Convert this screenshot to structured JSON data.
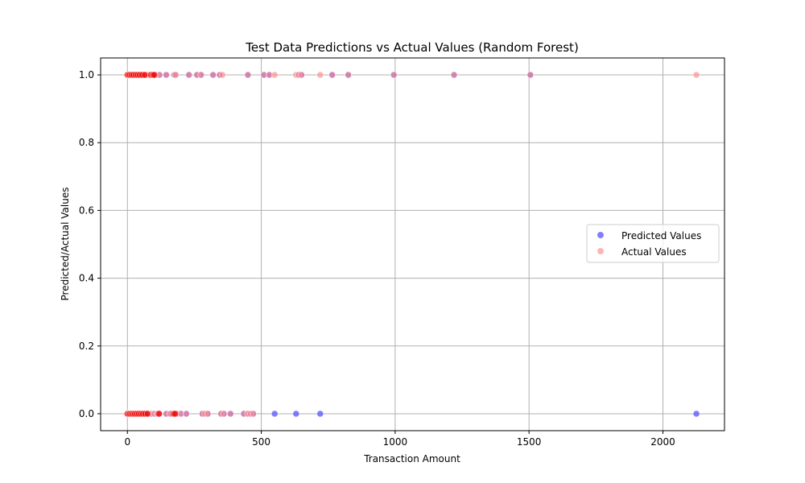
{
  "chart_data": {
    "type": "scatter",
    "title": "Test Data Predictions vs Actual Values (Random Forest)",
    "xlabel": "Transaction Amount",
    "ylabel": "Predicted/Actual Values",
    "xlim": [
      -100,
      2230
    ],
    "ylim": [
      -0.05,
      1.05
    ],
    "xticks": [
      0,
      500,
      1000,
      1500,
      2000
    ],
    "yticks": [
      0.0,
      0.2,
      0.4,
      0.6,
      0.8,
      1.0
    ],
    "xtick_labels": [
      "0",
      "500",
      "1000",
      "1500",
      "2000"
    ],
    "ytick_labels": [
      "0.0",
      "0.2",
      "0.4",
      "0.6",
      "0.8",
      "1.0"
    ],
    "grid": true,
    "legend_position": "right",
    "series": [
      {
        "name": "Predicted Values",
        "color": "#5555ff",
        "opacity": 0.75,
        "points": [
          [
            0,
            1
          ],
          [
            3,
            1
          ],
          [
            6,
            1
          ],
          [
            10,
            1
          ],
          [
            14,
            1
          ],
          [
            20,
            1
          ],
          [
            26,
            1
          ],
          [
            32,
            1
          ],
          [
            38,
            1
          ],
          [
            44,
            1
          ],
          [
            50,
            1
          ],
          [
            58,
            1
          ],
          [
            66,
            1
          ],
          [
            74,
            1
          ],
          [
            82,
            1
          ],
          [
            90,
            1
          ],
          [
            98,
            1
          ],
          [
            105,
            1
          ],
          [
            120,
            1
          ],
          [
            145,
            1
          ],
          [
            175,
            1
          ],
          [
            180,
            1
          ],
          [
            230,
            1
          ],
          [
            260,
            1
          ],
          [
            275,
            1
          ],
          [
            320,
            1
          ],
          [
            345,
            1
          ],
          [
            450,
            1
          ],
          [
            510,
            1
          ],
          [
            530,
            1
          ],
          [
            640,
            1
          ],
          [
            650,
            1
          ],
          [
            765,
            1
          ],
          [
            825,
            1
          ],
          [
            995,
            1
          ],
          [
            1220,
            1
          ],
          [
            1505,
            1
          ],
          [
            0,
            0
          ],
          [
            4,
            0
          ],
          [
            8,
            0
          ],
          [
            12,
            0
          ],
          [
            18,
            0
          ],
          [
            24,
            0
          ],
          [
            30,
            0
          ],
          [
            36,
            0
          ],
          [
            42,
            0
          ],
          [
            48,
            0
          ],
          [
            55,
            0
          ],
          [
            62,
            0
          ],
          [
            70,
            0
          ],
          [
            78,
            0
          ],
          [
            88,
            0
          ],
          [
            100,
            0
          ],
          [
            112,
            0
          ],
          [
            120,
            0
          ],
          [
            145,
            0
          ],
          [
            160,
            0
          ],
          [
            175,
            0
          ],
          [
            185,
            0
          ],
          [
            200,
            0
          ],
          [
            220,
            0
          ],
          [
            280,
            0
          ],
          [
            290,
            0
          ],
          [
            300,
            0
          ],
          [
            350,
            0
          ],
          [
            360,
            0
          ],
          [
            385,
            0
          ],
          [
            435,
            0
          ],
          [
            450,
            0
          ],
          [
            460,
            0
          ],
          [
            470,
            0
          ],
          [
            550,
            0
          ],
          [
            630,
            0
          ],
          [
            720,
            0
          ],
          [
            2125,
            0
          ]
        ]
      },
      {
        "name": "Actual Values",
        "color": "#ff8c8c",
        "opacity": 0.65,
        "points": [
          [
            0,
            1
          ],
          [
            3,
            1
          ],
          [
            6,
            1
          ],
          [
            10,
            1
          ],
          [
            14,
            1
          ],
          [
            20,
            1
          ],
          [
            26,
            1
          ],
          [
            32,
            1
          ],
          [
            38,
            1
          ],
          [
            44,
            1
          ],
          [
            50,
            1
          ],
          [
            58,
            1
          ],
          [
            66,
            1
          ],
          [
            74,
            1
          ],
          [
            82,
            1
          ],
          [
            90,
            1
          ],
          [
            98,
            1
          ],
          [
            105,
            1
          ],
          [
            120,
            1
          ],
          [
            145,
            1
          ],
          [
            175,
            1
          ],
          [
            180,
            1
          ],
          [
            230,
            1
          ],
          [
            260,
            1
          ],
          [
            275,
            1
          ],
          [
            320,
            1
          ],
          [
            345,
            1
          ],
          [
            355,
            1
          ],
          [
            450,
            1
          ],
          [
            510,
            1
          ],
          [
            530,
            1
          ],
          [
            550,
            1
          ],
          [
            630,
            1
          ],
          [
            640,
            1
          ],
          [
            650,
            1
          ],
          [
            720,
            1
          ],
          [
            765,
            1
          ],
          [
            825,
            1
          ],
          [
            995,
            1
          ],
          [
            1220,
            1
          ],
          [
            1505,
            1
          ],
          [
            2125,
            1
          ],
          [
            0,
            0
          ],
          [
            4,
            0
          ],
          [
            8,
            0
          ],
          [
            12,
            0
          ],
          [
            18,
            0
          ],
          [
            24,
            0
          ],
          [
            30,
            0
          ],
          [
            36,
            0
          ],
          [
            42,
            0
          ],
          [
            48,
            0
          ],
          [
            55,
            0
          ],
          [
            62,
            0
          ],
          [
            70,
            0
          ],
          [
            78,
            0
          ],
          [
            88,
            0
          ],
          [
            100,
            0
          ],
          [
            112,
            0
          ],
          [
            120,
            0
          ],
          [
            145,
            0
          ],
          [
            160,
            0
          ],
          [
            175,
            0
          ],
          [
            185,
            0
          ],
          [
            200,
            0
          ],
          [
            220,
            0
          ],
          [
            280,
            0
          ],
          [
            290,
            0
          ],
          [
            300,
            0
          ],
          [
            350,
            0
          ],
          [
            360,
            0
          ],
          [
            385,
            0
          ],
          [
            435,
            0
          ],
          [
            450,
            0
          ],
          [
            460,
            0
          ],
          [
            470,
            0
          ]
        ]
      }
    ],
    "dense_markers": {
      "color": "#ee1111",
      "points": [
        [
          0,
          1
        ],
        [
          4,
          1
        ],
        [
          9,
          1
        ],
        [
          15,
          1
        ],
        [
          22,
          1
        ],
        [
          30,
          1
        ],
        [
          38,
          1
        ],
        [
          46,
          1
        ],
        [
          55,
          1
        ],
        [
          65,
          1
        ],
        [
          88,
          1
        ],
        [
          95,
          1
        ],
        [
          100,
          1
        ],
        [
          0,
          0
        ],
        [
          5,
          0
        ],
        [
          10,
          0
        ],
        [
          16,
          0
        ],
        [
          22,
          0
        ],
        [
          28,
          0
        ],
        [
          35,
          0
        ],
        [
          42,
          0
        ],
        [
          50,
          0
        ],
        [
          58,
          0
        ],
        [
          66,
          0
        ],
        [
          75,
          0
        ],
        [
          118,
          0
        ],
        [
          172,
          0
        ],
        [
          178,
          0
        ]
      ]
    }
  }
}
